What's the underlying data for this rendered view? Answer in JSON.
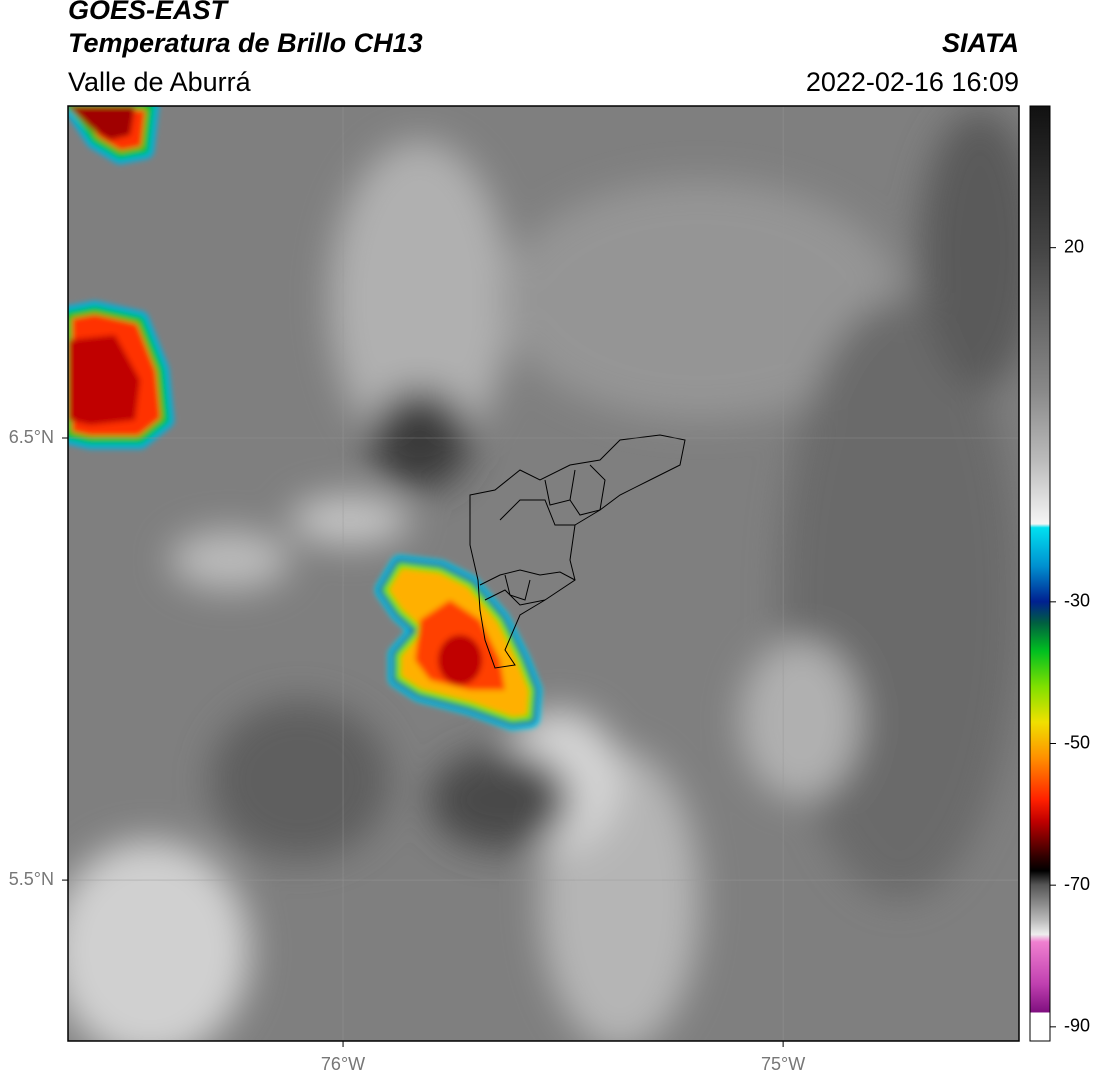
{
  "header": {
    "title": "GOES-EAST",
    "subtitle": "Temperatura de Brillo CH13",
    "region": "Valle de Aburrá",
    "source": "SIATA",
    "datetime": "2022-02-16 16:09"
  },
  "map": {
    "xlim": [
      -76.625,
      -74.464
    ],
    "ylim": [
      5.136,
      7.251
    ],
    "xticks": [
      {
        "value": -76,
        "label": "76°W"
      },
      {
        "value": -75,
        "label": "75°W"
      }
    ],
    "yticks": [
      {
        "value": 6.5,
        "label": "6.5°N"
      },
      {
        "value": 5.5,
        "label": "5.5°N"
      }
    ],
    "grid": true
  },
  "colorbar": {
    "lim": [
      -92,
      40
    ],
    "ticks": [
      20,
      -30,
      -50,
      -70,
      -90
    ]
  }
}
